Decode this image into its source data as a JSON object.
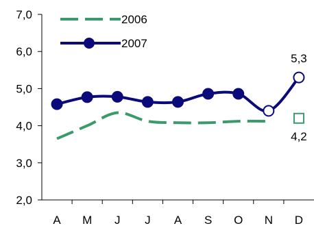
{
  "chart_data": {
    "type": "line",
    "categories": [
      "A",
      "M",
      "J",
      "J",
      "A",
      "S",
      "O",
      "N",
      "D"
    ],
    "yticks": [
      "2,0",
      "3,0",
      "4,0",
      "5,0",
      "6,0",
      "7,0"
    ],
    "ylim": [
      2.0,
      7.0
    ],
    "grid": false,
    "legend_position": "top-left",
    "series": [
      {
        "name": "2006",
        "color": "#3a9a6b",
        "style": "dashed",
        "values": [
          3.65,
          4.0,
          4.35,
          4.12,
          4.08,
          4.08,
          4.12,
          4.12,
          4.2
        ]
      },
      {
        "name": "2007",
        "color": "#0a0a7a",
        "style": "solid-markers",
        "values": [
          4.58,
          4.77,
          4.78,
          4.64,
          4.64,
          4.86,
          4.86,
          4.4,
          5.3
        ]
      }
    ],
    "annotations": [
      {
        "series": "2007",
        "category_index": 8,
        "text": "5,3"
      },
      {
        "series": "2006",
        "category_index": 8,
        "text": "4,2"
      }
    ]
  }
}
